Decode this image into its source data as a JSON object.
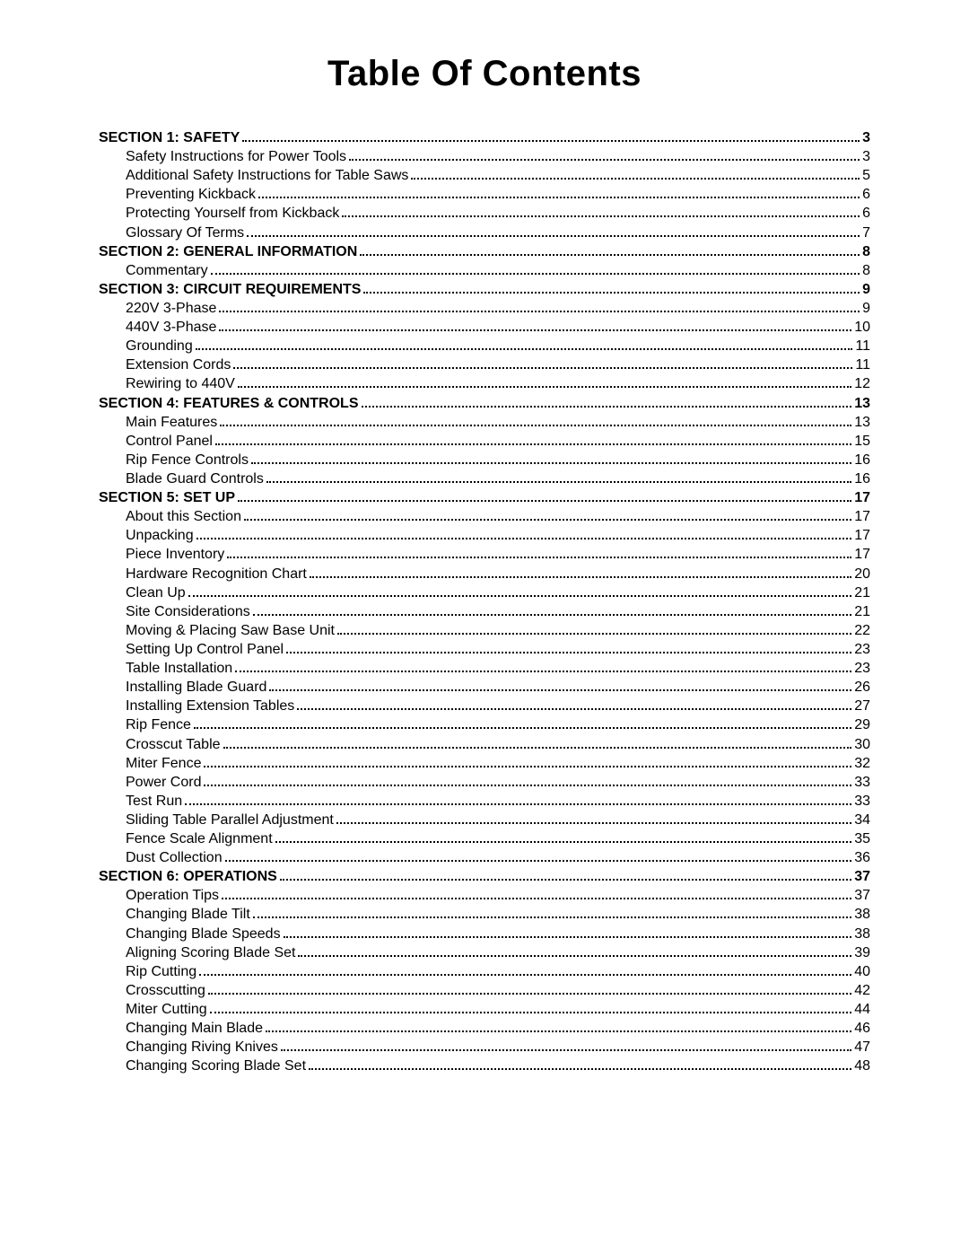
{
  "title": "Table Of Contents",
  "entries": [
    {
      "type": "section",
      "label": "SECTION 1: SAFETY",
      "page": "3"
    },
    {
      "type": "item",
      "label": "Safety Instructions for Power Tools ",
      "page": "3"
    },
    {
      "type": "item",
      "label": "Additional Safety Instructions for Table Saws ",
      "page": "5"
    },
    {
      "type": "item",
      "label": "Preventing Kickback",
      "page": "6"
    },
    {
      "type": "item",
      "label": "Protecting Yourself from Kickback ",
      "page": "6"
    },
    {
      "type": "item",
      "label": "Glossary Of Terms",
      "page": "7"
    },
    {
      "type": "section",
      "label": "SECTION 2: GENERAL INFORMATION",
      "page": "8"
    },
    {
      "type": "item",
      "label": "Commentary",
      "page": "8"
    },
    {
      "type": "section",
      "label": "SECTION 3: CIRCUIT REQUIREMENTS ",
      "page": "9"
    },
    {
      "type": "item",
      "label": "220V 3-Phase ",
      "page": "9"
    },
    {
      "type": "item",
      "label": "440V 3-Phase ",
      "page": "10"
    },
    {
      "type": "item",
      "label": "Grounding",
      "page": "11"
    },
    {
      "type": "item",
      "label": "Extension Cords",
      "page": "11"
    },
    {
      "type": "item",
      "label": "Rewiring to 440V ",
      "page": "12"
    },
    {
      "type": "section",
      "label": "SECTION 4: FEATURES & CONTROLS",
      "page": "13"
    },
    {
      "type": "item",
      "label": "Main Features ",
      "page": "13"
    },
    {
      "type": "item",
      "label": "Control Panel ",
      "page": "15"
    },
    {
      "type": "item",
      "label": "Rip Fence Controls ",
      "page": "16"
    },
    {
      "type": "item",
      "label": "Blade Guard Controls",
      "page": "16"
    },
    {
      "type": "section",
      "label": "SECTION 5: SET UP ",
      "page": "17"
    },
    {
      "type": "item",
      "label": "About this Section ",
      "page": "17"
    },
    {
      "type": "item",
      "label": "Unpacking ",
      "page": "17"
    },
    {
      "type": "item",
      "label": "Piece Inventory ",
      "page": "17"
    },
    {
      "type": "item",
      "label": "Hardware Recognition Chart ",
      "page": "20"
    },
    {
      "type": "item",
      "label": "Clean Up ",
      "page": "21"
    },
    {
      "type": "item",
      "label": "Site Considerations ",
      "page": "21"
    },
    {
      "type": "item",
      "label": "Moving & Placing Saw Base Unit ",
      "page": "22"
    },
    {
      "type": "item",
      "label": "Setting Up Control Panel ",
      "page": "23"
    },
    {
      "type": "item",
      "label": "Table Installation ",
      "page": "23"
    },
    {
      "type": "item",
      "label": "Installing Blade Guard ",
      "page": "26"
    },
    {
      "type": "item",
      "label": "Installing Extension Tables ",
      "page": "27"
    },
    {
      "type": "item",
      "label": "Rip Fence",
      "page": "29"
    },
    {
      "type": "item",
      "label": "Crosscut Table",
      "page": "30"
    },
    {
      "type": "item",
      "label": "Miter Fence ",
      "page": "32"
    },
    {
      "type": "item",
      "label": "Power Cord ",
      "page": "33"
    },
    {
      "type": "item",
      "label": "Test Run",
      "page": "33"
    },
    {
      "type": "item",
      "label": "Sliding Table Parallel Adjustment ",
      "page": "34"
    },
    {
      "type": "item",
      "label": "Fence Scale Alignment ",
      "page": "35"
    },
    {
      "type": "item",
      "label": "Dust Collection",
      "page": "36"
    },
    {
      "type": "section",
      "label": "SECTION 6: OPERATIONS",
      "page": "37"
    },
    {
      "type": "item",
      "label": "Operation Tips ",
      "page": "37"
    },
    {
      "type": "item",
      "label": "Changing Blade Tilt ",
      "page": "38"
    },
    {
      "type": "item",
      "label": "Changing Blade Speeds ",
      "page": "38"
    },
    {
      "type": "item",
      "label": "Aligning Scoring Blade Set ",
      "page": "39"
    },
    {
      "type": "item",
      "label": "Rip Cutting ",
      "page": "40"
    },
    {
      "type": "item",
      "label": "Crosscutting ",
      "page": "42"
    },
    {
      "type": "item",
      "label": "Miter Cutting",
      "page": "44"
    },
    {
      "type": "item",
      "label": "Changing Main Blade",
      "page": "46"
    },
    {
      "type": "item",
      "label": "Changing Riving Knives",
      "page": "47"
    },
    {
      "type": "item",
      "label": "Changing Scoring Blade Set ",
      "page": "48"
    }
  ]
}
